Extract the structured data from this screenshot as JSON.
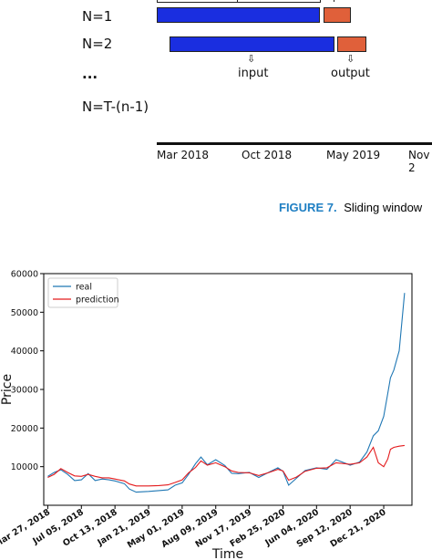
{
  "sliding": {
    "rows": [
      "N=1",
      "N=2",
      "...",
      "N=T-(n-1)"
    ],
    "input_label": "input",
    "output_label": "output",
    "arrow_glyph": "⇩",
    "timeline_ticks": [
      "Mar 2018",
      "Oct 2018",
      "May 2019",
      "Nov 2"
    ]
  },
  "caption": {
    "figure": "FIGURE 7.",
    "text": "Sliding window"
  },
  "colors": {
    "blue": "#1a2ee0",
    "orange": "#e0603a",
    "caption_blue": "#1f7fc3",
    "real": "#1f77b4",
    "prediction": "#e41a1c"
  },
  "chart_data": {
    "type": "line",
    "xlabel": "Time",
    "ylabel": "Price",
    "ylim": [
      0,
      60000
    ],
    "yticks": [
      10000,
      20000,
      30000,
      40000,
      50000,
      60000
    ],
    "ytick_labels": [
      "10000",
      "20000",
      "30000",
      "40000",
      "50000",
      "60000"
    ],
    "xtick_labels": [
      "Mar 27, 2018",
      "Jul 05, 2018",
      "Oct 13, 2018",
      "Jan 21, 2019",
      "May 01, 2019",
      "Aug 09, 2019",
      "Nov 17, 2019",
      "Feb 25, 2020",
      "Jun 04, 2020",
      "Sep 12, 2020",
      "Dec 21, 2020"
    ],
    "legend": {
      "placement": "top-left",
      "entries": [
        "real",
        "prediction"
      ]
    },
    "x": [
      "2018-03-27",
      "2018-04-15",
      "2018-05-05",
      "2018-05-25",
      "2018-06-15",
      "2018-07-05",
      "2018-07-25",
      "2018-08-15",
      "2018-09-05",
      "2018-09-25",
      "2018-10-13",
      "2018-11-10",
      "2018-11-25",
      "2018-12-15",
      "2019-01-21",
      "2019-02-20",
      "2019-03-20",
      "2019-04-10",
      "2019-05-01",
      "2019-05-20",
      "2019-06-10",
      "2019-06-26",
      "2019-07-15",
      "2019-08-09",
      "2019-09-05",
      "2019-09-25",
      "2019-10-15",
      "2019-11-17",
      "2019-12-15",
      "2020-01-15",
      "2020-02-10",
      "2020-02-25",
      "2020-03-13",
      "2020-04-05",
      "2020-05-01",
      "2020-06-04",
      "2020-07-05",
      "2020-08-01",
      "2020-09-12",
      "2020-10-10",
      "2020-11-01",
      "2020-11-20",
      "2020-12-05",
      "2020-12-21",
      "2021-01-02",
      "2021-01-10",
      "2021-01-20",
      "2021-02-05",
      "2021-02-21"
    ],
    "series": [
      {
        "name": "real",
        "values": [
          7500,
          8500,
          9200,
          8000,
          6400,
          6600,
          8200,
          6400,
          6800,
          6600,
          6300,
          5600,
          4200,
          3400,
          3600,
          3800,
          4000,
          5200,
          5800,
          8000,
          10800,
          12500,
          10500,
          11800,
          10300,
          8300,
          8200,
          8500,
          7200,
          8600,
          9700,
          8800,
          5200,
          7000,
          9000,
          9700,
          9300,
          11800,
          10400,
          11200,
          13800,
          18000,
          19300,
          23000,
          29000,
          33000,
          35000,
          40000,
          55000
        ]
      },
      {
        "name": "prediction",
        "values": [
          7200,
          8000,
          9500,
          8500,
          7600,
          7500,
          8000,
          7500,
          7100,
          7100,
          6800,
          6300,
          5500,
          5000,
          5000,
          5100,
          5300,
          5900,
          6600,
          8400,
          9800,
          11500,
          10400,
          11000,
          10000,
          8900,
          8500,
          8400,
          7700,
          8500,
          9300,
          8900,
          6500,
          7300,
          8800,
          9600,
          9700,
          11000,
          10600,
          11000,
          12500,
          15000,
          11000,
          10000,
          12000,
          14500,
          15000,
          15300,
          15500
        ]
      }
    ]
  }
}
